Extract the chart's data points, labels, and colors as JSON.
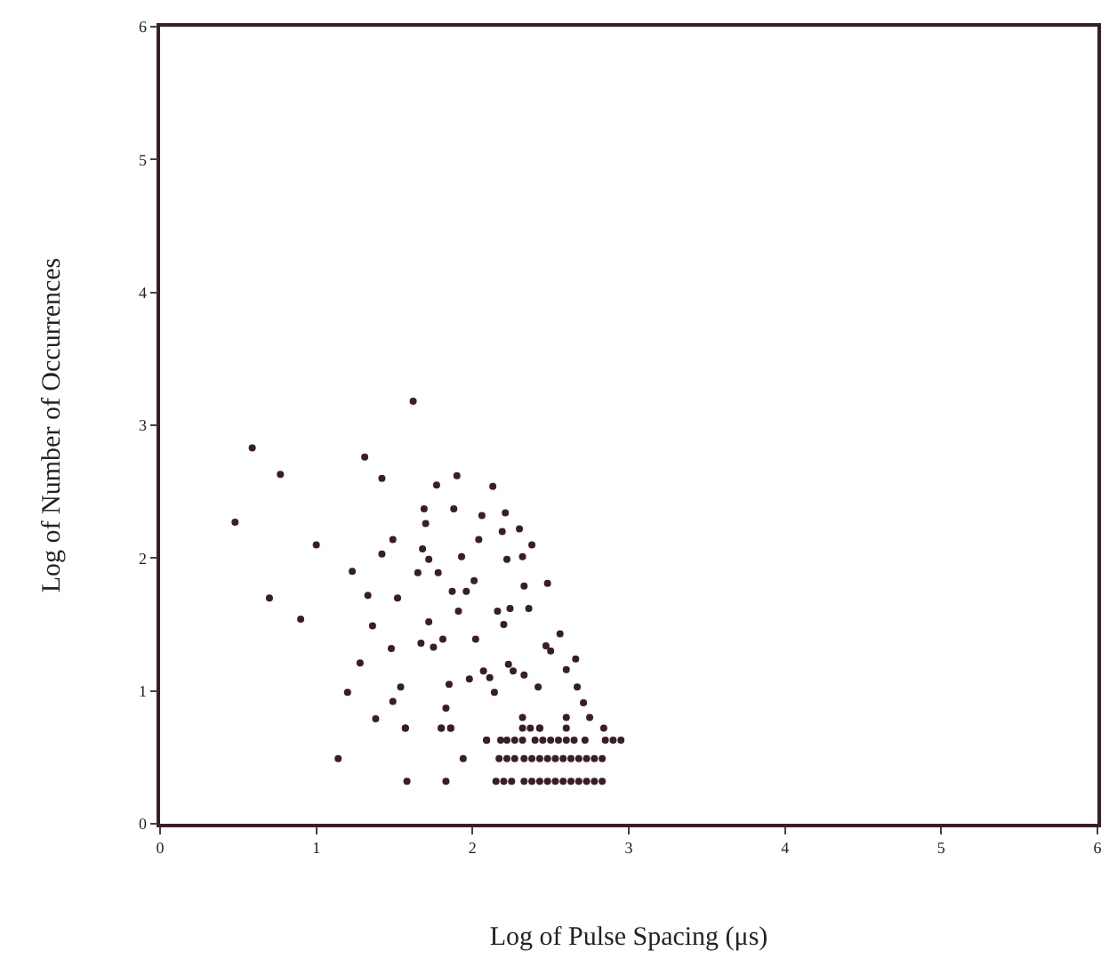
{
  "chart_data": {
    "type": "scatter",
    "xlabel": "Log of Pulse Spacing (μs)",
    "ylabel": "Log of Number of Occurrences",
    "xlim": [
      0,
      6
    ],
    "ylim": [
      0,
      6
    ],
    "xticks": [
      0,
      1,
      2,
      3,
      4,
      5,
      6
    ],
    "yticks": [
      0,
      1,
      2,
      3,
      4,
      5,
      6
    ],
    "legend": false,
    "marker": "circle",
    "series": [
      {
        "color": "#3a1f22",
        "x": [
          0.48,
          0.59,
          0.77,
          0.7,
          0.9,
          1.0,
          1.14,
          1.2,
          1.23,
          1.28,
          1.31,
          1.33,
          1.36,
          1.38,
          1.42,
          1.42,
          1.48,
          1.49,
          1.49,
          1.52,
          1.54,
          1.57,
          1.58,
          1.62,
          1.67,
          1.69,
          1.7,
          1.65,
          1.68,
          1.72,
          1.72,
          1.75,
          1.77,
          1.78,
          1.8,
          1.83,
          1.83,
          1.86,
          1.81,
          1.85,
          1.88,
          1.87,
          1.9,
          1.91,
          1.94,
          1.93,
          1.96,
          1.98,
          2.01,
          2.02,
          2.04,
          2.06,
          2.07,
          2.09,
          2.11,
          2.13,
          2.14,
          2.16,
          2.19,
          2.21,
          2.22,
          2.2,
          2.23,
          2.26,
          2.24,
          2.3,
          2.32,
          2.33,
          2.36,
          2.38,
          2.48,
          2.56,
          2.66,
          2.67,
          2.6,
          2.47,
          2.5,
          2.71,
          2.75,
          2.32,
          2.6,
          2.43,
          2.42,
          2.33,
          2.15,
          2.2,
          2.25,
          2.33,
          2.38,
          2.43,
          2.48,
          2.53,
          2.58,
          2.63,
          2.68,
          2.73,
          2.78,
          2.83,
          2.17,
          2.22,
          2.27,
          2.33,
          2.38,
          2.43,
          2.48,
          2.53,
          2.58,
          2.63,
          2.68,
          2.73,
          2.78,
          2.83,
          2.09,
          2.18,
          2.22,
          2.27,
          2.32,
          2.4,
          2.45,
          2.5,
          2.55,
          2.6,
          2.65,
          2.72,
          2.85,
          2.9,
          2.95,
          1.57,
          1.8,
          1.86,
          2.32,
          2.37,
          2.43,
          2.6,
          2.84
        ],
        "values": [
          2.27,
          2.83,
          2.63,
          1.7,
          1.54,
          2.1,
          0.49,
          0.99,
          1.9,
          1.21,
          2.76,
          1.72,
          1.49,
          0.79,
          2.6,
          2.03,
          1.32,
          2.14,
          0.92,
          1.7,
          1.03,
          0.72,
          0.32,
          3.18,
          1.36,
          2.37,
          2.26,
          1.89,
          2.07,
          1.99,
          1.52,
          1.33,
          2.55,
          1.89,
          0.72,
          0.87,
          0.32,
          0.72,
          1.39,
          1.05,
          2.37,
          1.75,
          2.62,
          1.6,
          0.49,
          2.01,
          1.75,
          1.09,
          1.83,
          1.39,
          2.14,
          2.32,
          1.15,
          0.63,
          1.1,
          2.54,
          0.99,
          1.6,
          2.2,
          2.34,
          1.99,
          1.5,
          1.2,
          1.15,
          1.62,
          2.22,
          2.01,
          1.79,
          1.62,
          2.1,
          1.81,
          1.43,
          1.24,
          1.03,
          1.16,
          1.34,
          1.3,
          0.91,
          0.8,
          0.8,
          0.8,
          0.72,
          1.03,
          1.12,
          0.32,
          0.32,
          0.32,
          0.32,
          0.32,
          0.32,
          0.32,
          0.32,
          0.32,
          0.32,
          0.32,
          0.32,
          0.32,
          0.32,
          0.49,
          0.49,
          0.49,
          0.49,
          0.49,
          0.49,
          0.49,
          0.49,
          0.49,
          0.49,
          0.49,
          0.49,
          0.49,
          0.49,
          0.63,
          0.63,
          0.63,
          0.63,
          0.63,
          0.63,
          0.63,
          0.63,
          0.63,
          0.63,
          0.63,
          0.63,
          0.63,
          0.63,
          0.63,
          0.72,
          0.72,
          0.72,
          0.72,
          0.72,
          0.72,
          0.72,
          0.72
        ]
      }
    ]
  }
}
